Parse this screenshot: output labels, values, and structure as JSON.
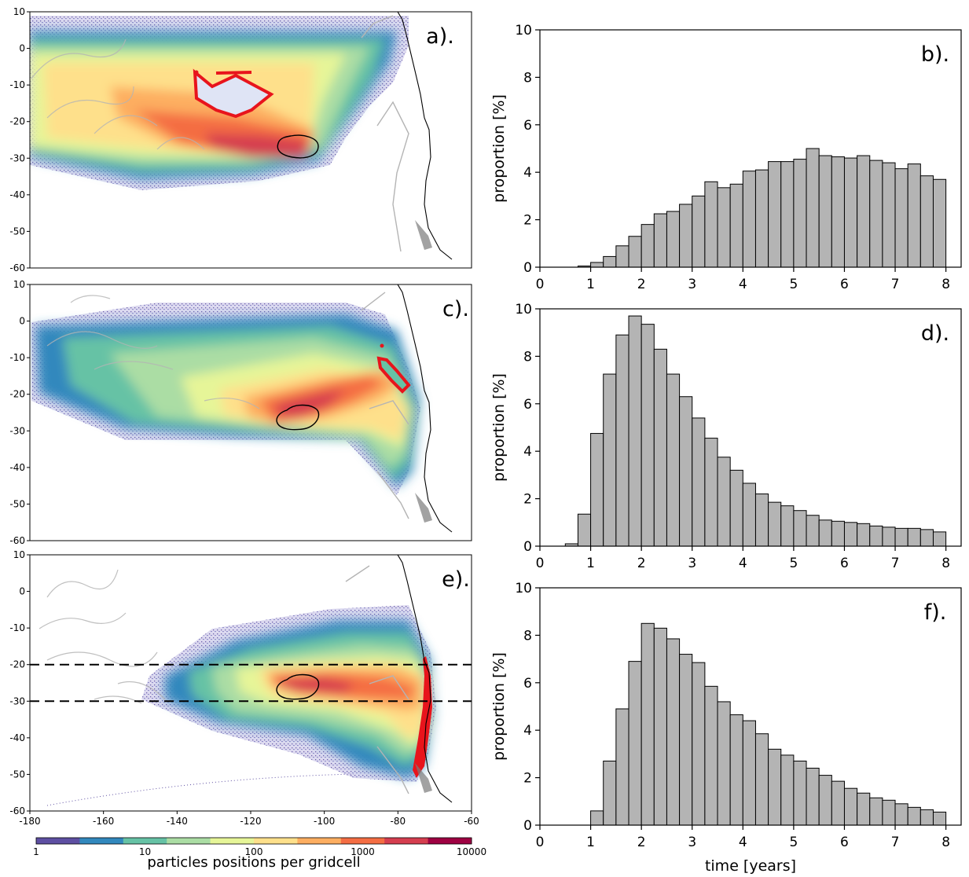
{
  "colorbar": {
    "label": "particles positions per gridcell",
    "ticks": [
      "1",
      "10",
      "100",
      "1000",
      "10000"
    ],
    "colors": [
      "#5e4fa2",
      "#3288bd",
      "#66c2a5",
      "#abdda4",
      "#e6f598",
      "#fee08b",
      "#fdae61",
      "#f46d43",
      "#d53e4f",
      "#9e0142"
    ]
  },
  "maps": {
    "lon_ticks": [
      "-180",
      "-160",
      "-140",
      "-120",
      "-100",
      "-80",
      "-60"
    ],
    "lat_ticks": [
      "10",
      "0",
      "-10",
      "-20",
      "-30",
      "-40",
      "-50",
      "-60"
    ],
    "colors": {
      "release": "#e8141c",
      "target": "#000000",
      "eez": "#b4b4b4",
      "coast": "#000000"
    },
    "panels": [
      {
        "label": "a)."
      },
      {
        "label": "c)."
      },
      {
        "label": "e).",
        "lat_lines": [
          -20,
          -30
        ]
      }
    ]
  },
  "chart_data": [
    {
      "type": "bar",
      "panel_label": "b).",
      "xlabel": "",
      "ylabel": "proportion [%]",
      "xlim": [
        0,
        8.3
      ],
      "ylim": [
        0,
        10
      ],
      "xticks": [
        "0",
        "1",
        "2",
        "3",
        "4",
        "5",
        "6",
        "7",
        "8"
      ],
      "yticks": [
        "0",
        "2",
        "4",
        "6",
        "8",
        "10"
      ],
      "bin_start": 0.5,
      "bin_width": 0.25,
      "values": [
        0.0,
        0.05,
        0.2,
        0.45,
        0.9,
        1.3,
        1.8,
        2.25,
        2.35,
        2.65,
        3.0,
        3.6,
        3.35,
        3.5,
        4.05,
        4.1,
        4.45,
        4.45,
        4.55,
        5.0,
        4.7,
        4.65,
        4.6,
        4.7,
        4.5,
        4.4,
        4.15,
        4.35,
        3.85,
        3.7
      ]
    },
    {
      "type": "bar",
      "panel_label": "d).",
      "xlabel": "",
      "ylabel": "proportion [%]",
      "xlim": [
        0,
        8.3
      ],
      "ylim": [
        0,
        10
      ],
      "xticks": [
        "0",
        "1",
        "2",
        "3",
        "4",
        "5",
        "6",
        "7",
        "8"
      ],
      "yticks": [
        "0",
        "2",
        "4",
        "6",
        "8",
        "10"
      ],
      "bin_start": 0.5,
      "bin_width": 0.25,
      "values": [
        0.1,
        1.35,
        4.75,
        7.25,
        8.9,
        9.7,
        9.35,
        8.3,
        7.25,
        6.3,
        5.4,
        4.55,
        3.75,
        3.2,
        2.65,
        2.2,
        1.85,
        1.7,
        1.5,
        1.3,
        1.1,
        1.05,
        1.0,
        0.95,
        0.85,
        0.8,
        0.75,
        0.75,
        0.7,
        0.6
      ]
    },
    {
      "type": "bar",
      "panel_label": "f).",
      "xlabel": "time [years]",
      "ylabel": "proportion [%]",
      "xlim": [
        0,
        8.3
      ],
      "ylim": [
        0,
        10
      ],
      "xticks": [
        "0",
        "1",
        "2",
        "3",
        "4",
        "5",
        "6",
        "7",
        "8"
      ],
      "yticks": [
        "0",
        "2",
        "4",
        "6",
        "8",
        "10"
      ],
      "bin_start": 1.0,
      "bin_width": 0.25,
      "values": [
        0.6,
        2.7,
        4.9,
        6.9,
        8.5,
        8.3,
        7.85,
        7.2,
        6.85,
        5.85,
        5.2,
        4.65,
        4.4,
        3.85,
        3.2,
        2.95,
        2.7,
        2.4,
        2.1,
        1.85,
        1.55,
        1.35,
        1.15,
        1.05,
        0.9,
        0.75,
        0.65,
        0.55
      ]
    }
  ]
}
